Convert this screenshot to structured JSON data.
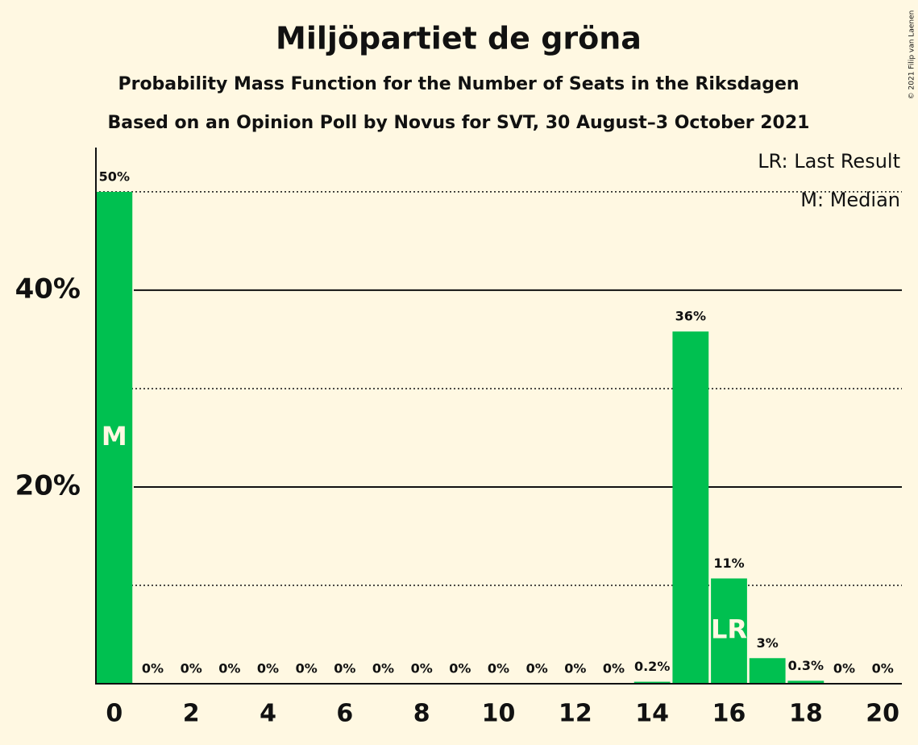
{
  "chart_data": {
    "type": "bar",
    "title": "Miljöpartiet de gröna",
    "subtitle": "Probability Mass Function for the Number of Seats in the Riksdagen",
    "subtitle2": "Based on an Opinion Poll by Novus for SVT, 30 August–3 October 2021",
    "copyright": "© 2021 Filip van Laenen",
    "x": [
      0,
      1,
      2,
      3,
      4,
      5,
      6,
      7,
      8,
      9,
      10,
      11,
      12,
      13,
      14,
      15,
      16,
      17,
      18,
      19,
      20
    ],
    "values": [
      50,
      0,
      0,
      0,
      0,
      0,
      0,
      0,
      0,
      0,
      0,
      0,
      0,
      0,
      0.2,
      35.8,
      10.7,
      2.6,
      0.3,
      0,
      0
    ],
    "value_labels": [
      "50%",
      "0%",
      "0%",
      "0%",
      "0%",
      "0%",
      "0%",
      "0%",
      "0%",
      "0%",
      "0%",
      "0%",
      "0%",
      "0%",
      "0.2%",
      "36%",
      "11%",
      "3%",
      "0.3%",
      "0%",
      "0%"
    ],
    "color": "#00c050",
    "xlim": [
      -0.5,
      20.5
    ],
    "xticks": [
      0,
      2,
      4,
      6,
      8,
      10,
      12,
      14,
      16,
      18,
      20
    ],
    "ylim": [
      0,
      54.5
    ],
    "yticks": [
      {
        "value": 20,
        "label": "20%"
      },
      {
        "value": 40,
        "label": "40%"
      }
    ],
    "minor_yticks": [
      10,
      30,
      50
    ],
    "grid": true,
    "annotations": [
      {
        "x": 0,
        "label": "M"
      },
      {
        "x": 16,
        "label": "LR"
      }
    ],
    "legend": [
      "LR: Last Result",
      "M: Median"
    ],
    "legend_position": "top-right"
  }
}
